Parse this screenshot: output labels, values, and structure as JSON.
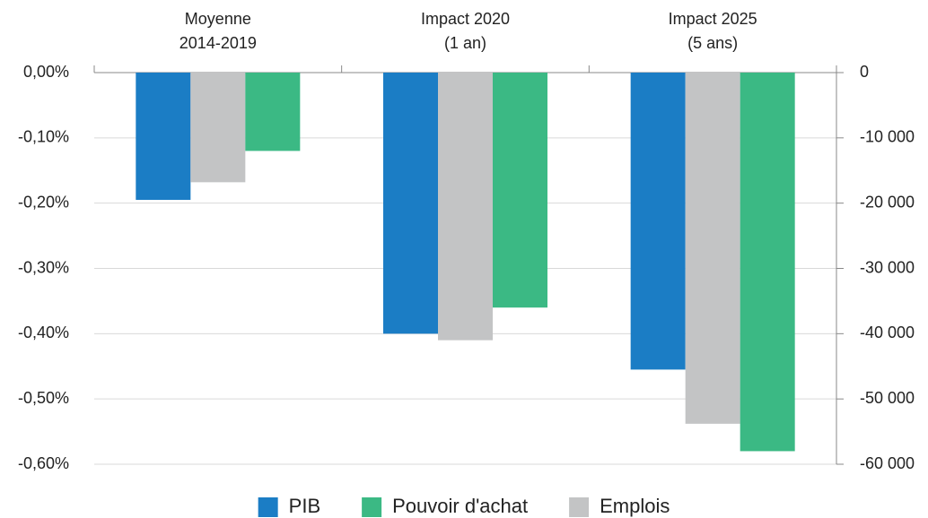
{
  "chart_data": {
    "type": "bar",
    "categories": [
      "Moyenne\n2014-2019",
      "Impact 2020\n(1 an)",
      "Impact 2025\n(5 ans)"
    ],
    "series": [
      {
        "name": "PIB",
        "color": "#1b7dc5",
        "values": [
          -0.195,
          -0.4,
          -0.455
        ]
      },
      {
        "name": "Pouvoir d'achat",
        "color": "#3bb984",
        "values": [
          -0.12,
          -0.36,
          -0.58
        ]
      },
      {
        "name": "Emplois",
        "color": "#c3c4c5",
        "axis": "y2",
        "values": [
          -16800,
          -41000,
          -53800
        ]
      }
    ],
    "ylim": [
      -0.6,
      0
    ],
    "yticks": [
      {
        "value": 0,
        "label": "0,00%"
      },
      {
        "value": -0.1,
        "label": "-0,10%"
      },
      {
        "value": -0.2,
        "label": "-0,20%"
      },
      {
        "value": -0.3,
        "label": "-0,30%"
      },
      {
        "value": -0.4,
        "label": "-0,40%"
      },
      {
        "value": -0.5,
        "label": "-0,50%"
      },
      {
        "value": -0.6,
        "label": "-0,60%"
      }
    ],
    "y2lim": [
      -60000,
      0
    ],
    "y2ticks": [
      0,
      {
        "value": -10000,
        "label": "-10 000"
      },
      {
        "value": -20000,
        "label": "-20 000"
      },
      {
        "value": -30000,
        "label": "-30 000"
      },
      {
        "value": -40000,
        "label": "-40 000"
      },
      {
        "value": -50000,
        "label": "-50 000"
      },
      {
        "value": -60000,
        "label": "-60 000"
      }
    ],
    "grid": true,
    "legend": "bottom"
  }
}
